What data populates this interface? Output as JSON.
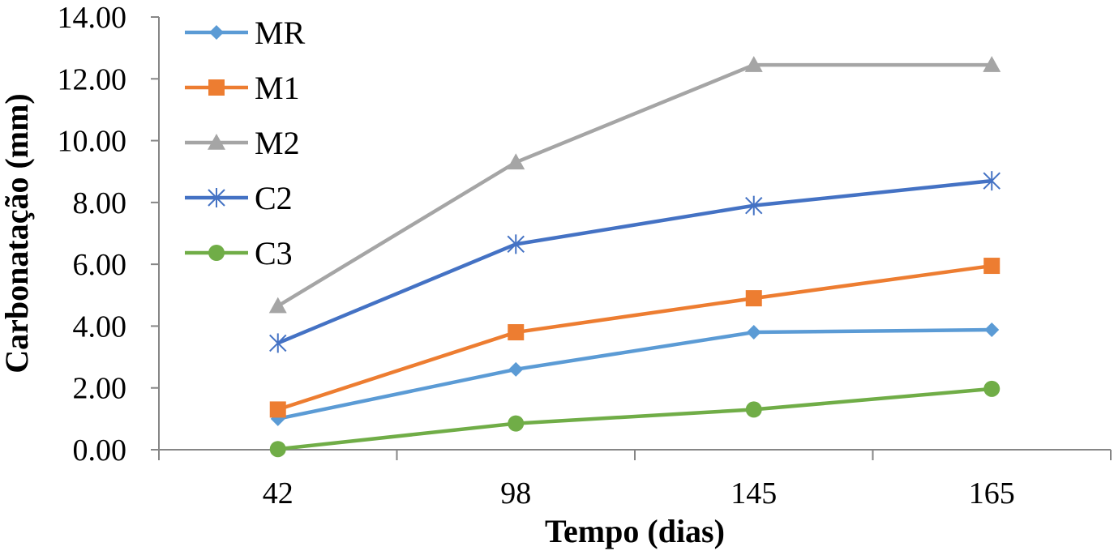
{
  "chart_data": {
    "type": "line",
    "title": "",
    "xlabel": "Tempo (dias)",
    "ylabel": "Carbonatação (mm)",
    "categories": [
      "42",
      "98",
      "145",
      "165"
    ],
    "ylim": [
      0,
      14
    ],
    "yticks": [
      "0.00",
      "2.00",
      "4.00",
      "6.00",
      "8.00",
      "10.00",
      "12.00",
      "14.00"
    ],
    "grid": false,
    "legend_position": "top-left",
    "series": [
      {
        "name": "MR",
        "values": [
          1.0,
          2.6,
          3.8,
          3.88
        ],
        "color": "#5B9BD5",
        "marker": "diamond"
      },
      {
        "name": "M1",
        "values": [
          1.3,
          3.8,
          4.9,
          5.95
        ],
        "color": "#ED7D31",
        "marker": "square"
      },
      {
        "name": "M2",
        "values": [
          4.65,
          9.3,
          12.45,
          12.45
        ],
        "color": "#A5A5A5",
        "marker": "triangle"
      },
      {
        "name": "C2",
        "values": [
          3.45,
          6.65,
          7.9,
          8.7
        ],
        "color": "#4472C4",
        "marker": "asterisk"
      },
      {
        "name": "C3",
        "values": [
          0.02,
          0.85,
          1.3,
          1.97
        ],
        "color": "#70AD47",
        "marker": "circle"
      }
    ]
  }
}
